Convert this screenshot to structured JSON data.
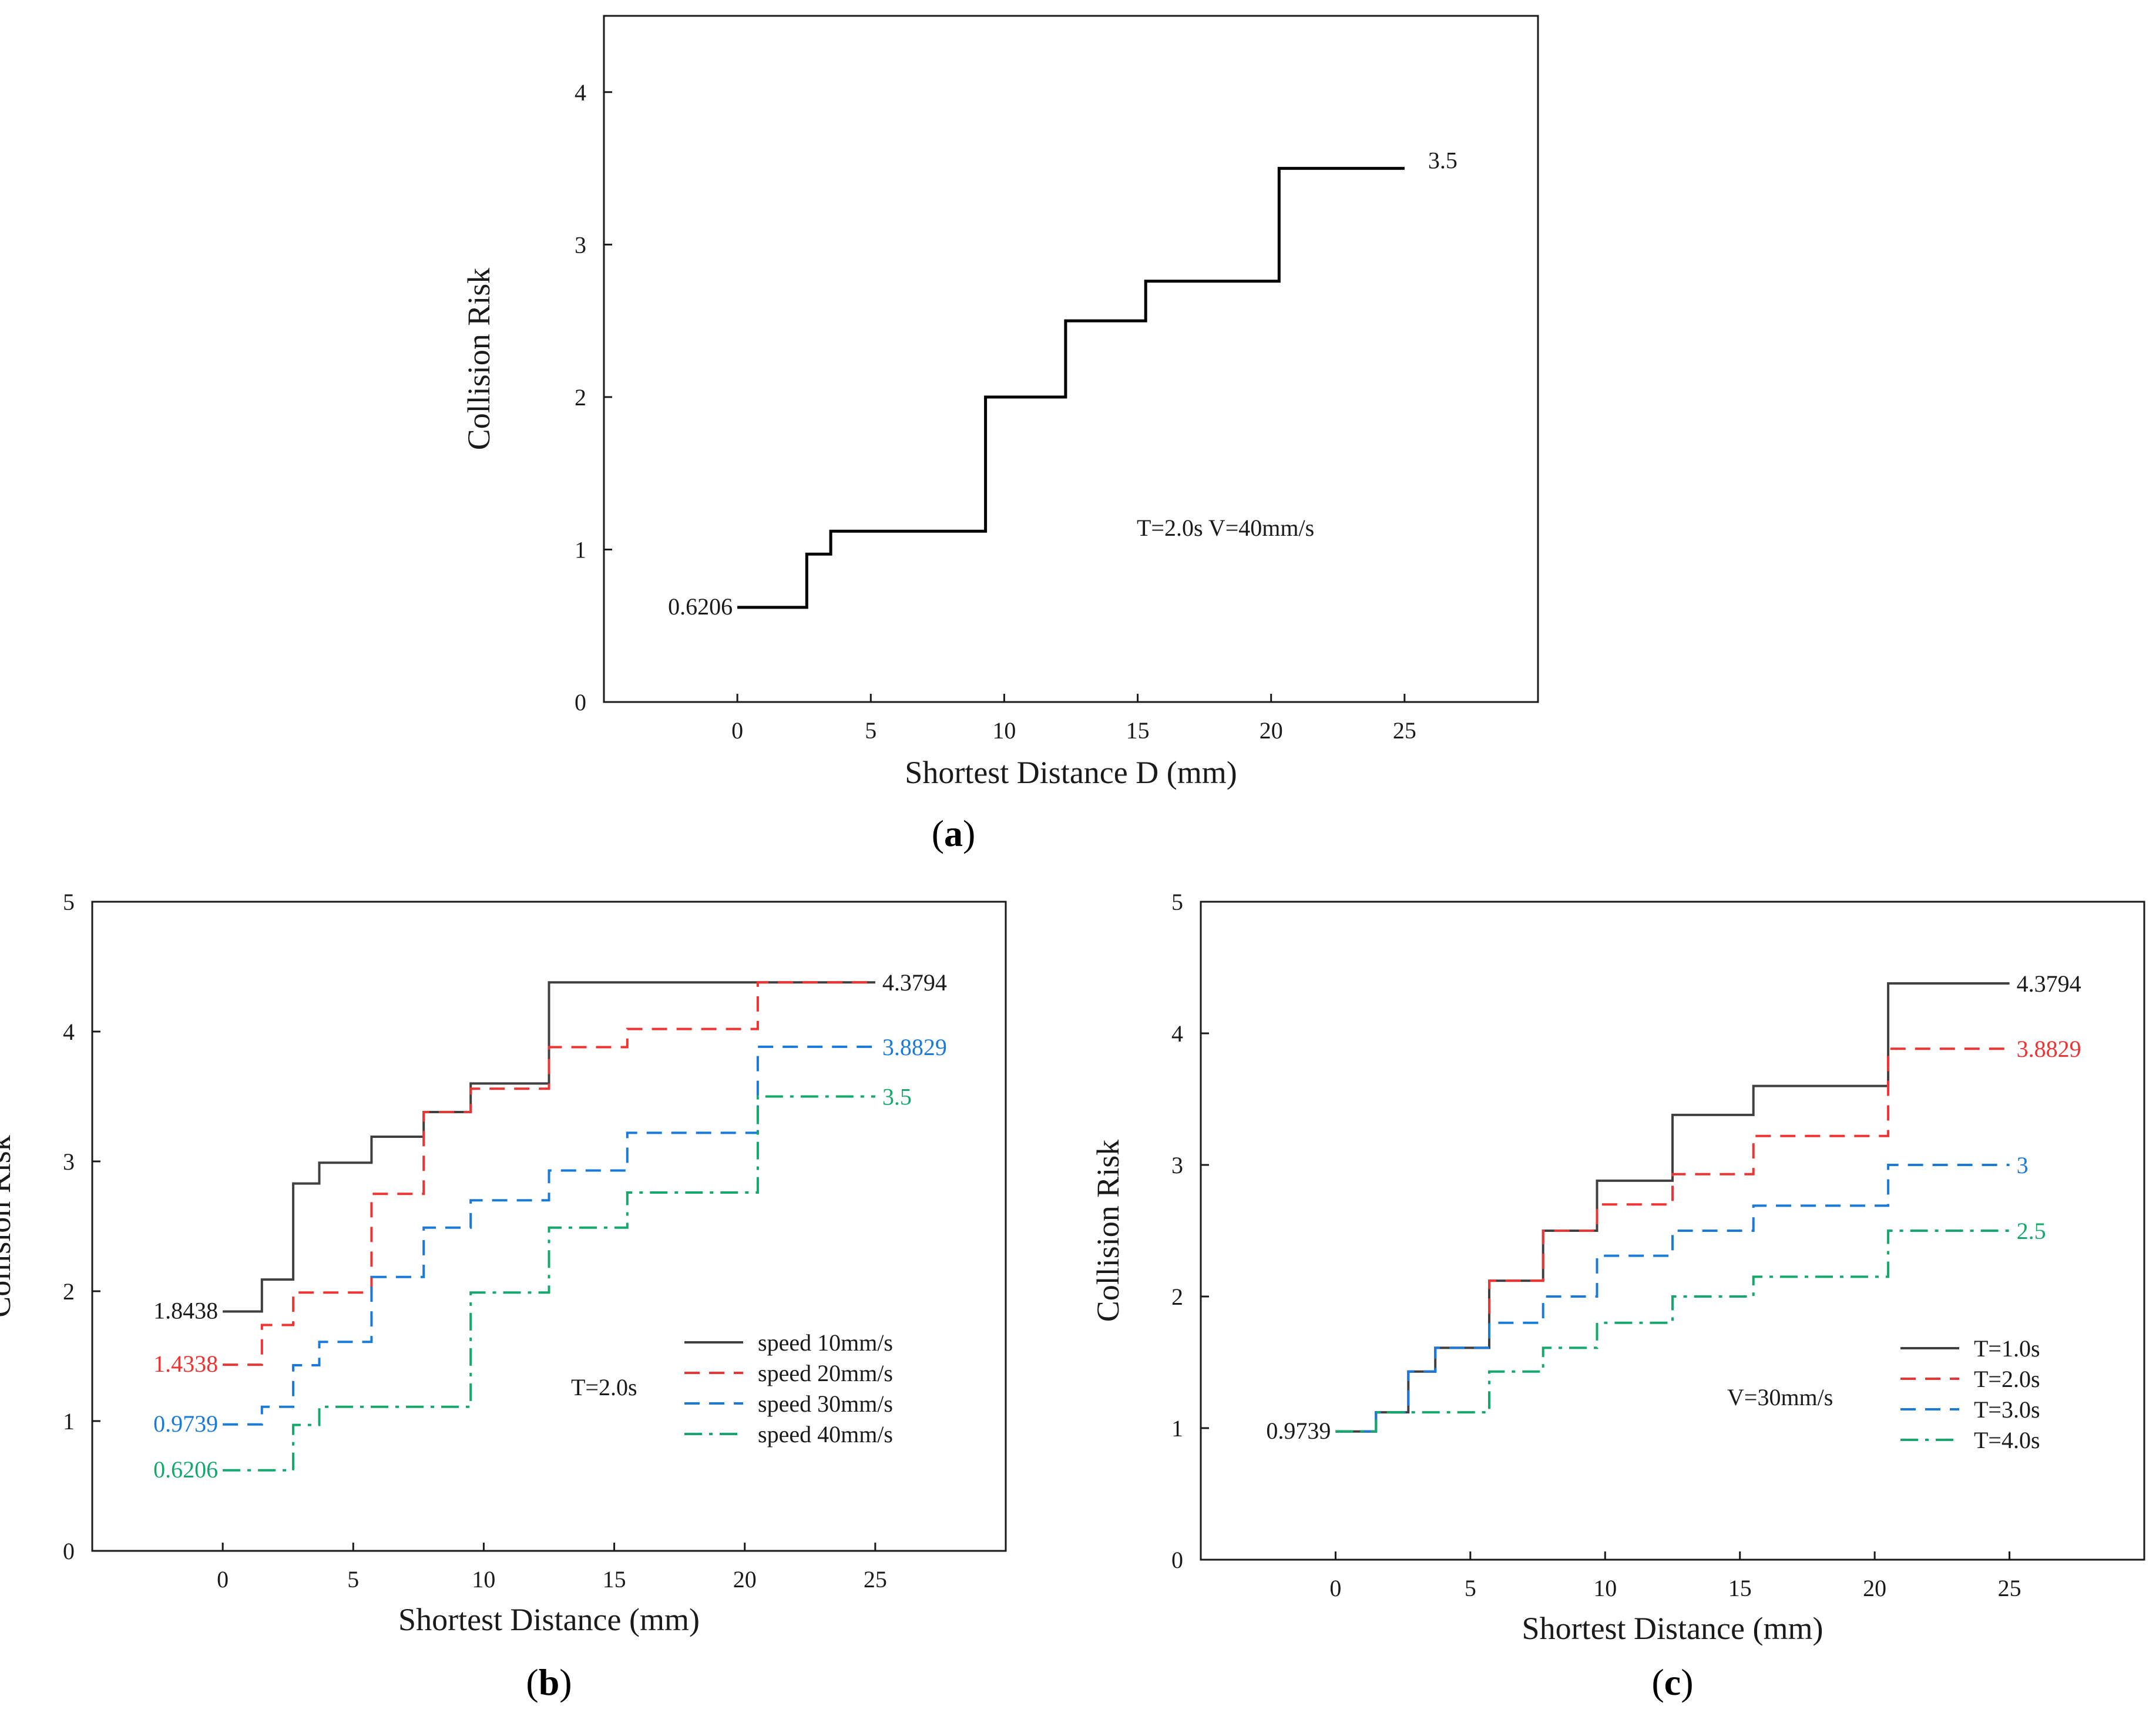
{
  "chart_data": [
    {
      "panel": "(a)",
      "panel_letter": "a",
      "type": "line",
      "step": true,
      "xlabel": "Shortest Distance D (mm)",
      "ylabel": "Collision Risk",
      "xlim": [
        -5,
        30
      ],
      "ylim": [
        0,
        4.5
      ],
      "xticks": [
        0,
        5,
        10,
        15,
        20,
        25
      ],
      "yticks": [
        0,
        1,
        2,
        3,
        4
      ],
      "annotation": "T=2.0s V=40mm/s",
      "series": [
        {
          "name": "T=2.0s V=40mm/s",
          "color": "#000000",
          "dash": "solid",
          "start_label": "0.6206",
          "end_label": "3.5",
          "label_color": "#1a1a1a",
          "points": [
            [
              0,
              0.6206
            ],
            [
              2.6,
              0.6206
            ],
            [
              2.6,
              0.97
            ],
            [
              3.5,
              0.97
            ],
            [
              3.5,
              1.12
            ],
            [
              9.3,
              1.12
            ],
            [
              9.3,
              2.0
            ],
            [
              12.3,
              2.0
            ],
            [
              12.3,
              2.5
            ],
            [
              15.3,
              2.5
            ],
            [
              15.3,
              2.76
            ],
            [
              20.3,
              2.76
            ],
            [
              20.3,
              3.5
            ],
            [
              25,
              3.5
            ]
          ]
        }
      ]
    },
    {
      "panel": "(b)",
      "panel_letter": "b",
      "type": "line",
      "step": true,
      "xlabel": "Shortest Distance (mm)",
      "ylabel": "Collision Risk",
      "xlim": [
        -5,
        30
      ],
      "ylim": [
        0,
        5
      ],
      "xticks": [
        0,
        5,
        10,
        15,
        20,
        25
      ],
      "yticks": [
        0,
        1,
        2,
        3,
        4,
        5
      ],
      "annotation": "T=2.0s",
      "legend_position": "lower-right",
      "series": [
        {
          "name": "speed 10mm/s",
          "color": "#404040",
          "dash": "solid",
          "start_label": "1.8438",
          "end_label": "4.3794",
          "label_color": "#1a1a1a",
          "points": [
            [
              0,
              1.8438
            ],
            [
              1.5,
              1.8438
            ],
            [
              1.5,
              2.09
            ],
            [
              2.7,
              2.09
            ],
            [
              2.7,
              2.83
            ],
            [
              3.7,
              2.83
            ],
            [
              3.7,
              2.99
            ],
            [
              5.7,
              2.99
            ],
            [
              5.7,
              3.19
            ],
            [
              7.7,
              3.19
            ],
            [
              7.7,
              3.38
            ],
            [
              9.5,
              3.38
            ],
            [
              9.5,
              3.6
            ],
            [
              12.5,
              3.6
            ],
            [
              12.5,
              4.3794
            ],
            [
              25,
              4.3794
            ]
          ]
        },
        {
          "name": "speed 20mm/s",
          "color": "#ee3333",
          "dash": "dashed",
          "start_label": "1.4338",
          "end_label": "",
          "label_color": "#ee3333",
          "points": [
            [
              0,
              1.4338
            ],
            [
              1.5,
              1.4338
            ],
            [
              1.5,
              1.74
            ],
            [
              2.7,
              1.74
            ],
            [
              2.7,
              1.99
            ],
            [
              5.7,
              1.99
            ],
            [
              5.7,
              2.75
            ],
            [
              7.7,
              2.75
            ],
            [
              7.7,
              3.38
            ],
            [
              9.5,
              3.38
            ],
            [
              9.5,
              3.56
            ],
            [
              12.5,
              3.56
            ],
            [
              12.5,
              3.88
            ],
            [
              15.5,
              3.88
            ],
            [
              15.5,
              4.02
            ],
            [
              20.5,
              4.02
            ],
            [
              20.5,
              4.3794
            ],
            [
              25,
              4.3794
            ]
          ]
        },
        {
          "name": "speed 30mm/s",
          "color": "#1a7ad9",
          "dash": "dashed",
          "start_label": "0.9739",
          "end_label": "3.8829",
          "label_color": "#1a7ad9",
          "points": [
            [
              0,
              0.9739
            ],
            [
              1.5,
              0.9739
            ],
            [
              1.5,
              1.11
            ],
            [
              2.7,
              1.11
            ],
            [
              2.7,
              1.43
            ],
            [
              3.7,
              1.43
            ],
            [
              3.7,
              1.61
            ],
            [
              5.7,
              1.61
            ],
            [
              5.7,
              2.11
            ],
            [
              7.7,
              2.11
            ],
            [
              7.7,
              2.49
            ],
            [
              9.5,
              2.49
            ],
            [
              9.5,
              2.7
            ],
            [
              12.5,
              2.7
            ],
            [
              12.5,
              2.93
            ],
            [
              15.5,
              2.93
            ],
            [
              15.5,
              3.22
            ],
            [
              20.5,
              3.22
            ],
            [
              20.5,
              3.8829
            ],
            [
              25,
              3.8829
            ]
          ]
        },
        {
          "name": "speed 40mm/s",
          "color": "#14a86c",
          "dash": "dashdot",
          "start_label": "0.6206",
          "end_label": "3.5",
          "label_color": "#14a86c",
          "points": [
            [
              0,
              0.6206
            ],
            [
              2.7,
              0.6206
            ],
            [
              2.7,
              0.97
            ],
            [
              3.7,
              0.97
            ],
            [
              3.7,
              1.11
            ],
            [
              9.5,
              1.11
            ],
            [
              9.5,
              1.99
            ],
            [
              12.5,
              1.99
            ],
            [
              12.5,
              2.49
            ],
            [
              15.5,
              2.49
            ],
            [
              15.5,
              2.76
            ],
            [
              20.5,
              2.76
            ],
            [
              20.5,
              3.5
            ],
            [
              25,
              3.5
            ]
          ]
        }
      ]
    },
    {
      "panel": "(c)",
      "panel_letter": "c",
      "type": "line",
      "step": true,
      "xlabel": "Shortest Distance (mm)",
      "ylabel": "Collision Risk",
      "xlim": [
        -5,
        30
      ],
      "ylim": [
        0,
        5
      ],
      "xticks": [
        0,
        5,
        10,
        15,
        20,
        25
      ],
      "yticks": [
        0,
        1,
        2,
        3,
        4,
        5
      ],
      "annotation": "V=30mm/s",
      "legend_position": "lower-right",
      "series": [
        {
          "name": "T=1.0s",
          "color": "#404040",
          "dash": "solid",
          "start_label": "0.9739",
          "end_label": "4.3794",
          "label_color": "#1a1a1a",
          "points": [
            [
              0,
              0.9739
            ],
            [
              1.5,
              0.9739
            ],
            [
              1.5,
              1.12
            ],
            [
              2.7,
              1.12
            ],
            [
              2.7,
              1.43
            ],
            [
              3.7,
              1.43
            ],
            [
              3.7,
              1.61
            ],
            [
              5.7,
              1.61
            ],
            [
              5.7,
              2.12
            ],
            [
              7.7,
              2.12
            ],
            [
              7.7,
              2.5
            ],
            [
              9.7,
              2.5
            ],
            [
              9.7,
              2.88
            ],
            [
              12.5,
              2.88
            ],
            [
              12.5,
              3.38
            ],
            [
              15.5,
              3.38
            ],
            [
              15.5,
              3.6
            ],
            [
              20.5,
              3.6
            ],
            [
              20.5,
              4.3794
            ],
            [
              25,
              4.3794
            ]
          ]
        },
        {
          "name": "T=2.0s",
          "color": "#ee3333",
          "dash": "dashed",
          "start_label": "",
          "end_label": "3.8829",
          "label_color": "#ee3333",
          "points": [
            [
              0,
              0.9739
            ],
            [
              1.5,
              0.9739
            ],
            [
              1.5,
              1.12
            ],
            [
              2.7,
              1.12
            ],
            [
              2.7,
              1.43
            ],
            [
              3.7,
              1.43
            ],
            [
              3.7,
              1.61
            ],
            [
              5.7,
              1.61
            ],
            [
              5.7,
              2.12
            ],
            [
              7.7,
              2.12
            ],
            [
              7.7,
              2.5
            ],
            [
              9.7,
              2.5
            ],
            [
              9.7,
              2.7
            ],
            [
              12.5,
              2.7
            ],
            [
              12.5,
              2.93
            ],
            [
              15.5,
              2.93
            ],
            [
              15.5,
              3.22
            ],
            [
              20.5,
              3.22
            ],
            [
              20.5,
              3.8829
            ],
            [
              25,
              3.8829
            ]
          ]
        },
        {
          "name": "T=3.0s",
          "color": "#1a7ad9",
          "dash": "dashed",
          "start_label": "",
          "end_label": "3",
          "label_color": "#1a7ad9",
          "points": [
            [
              0,
              0.9739
            ],
            [
              1.5,
              0.9739
            ],
            [
              1.5,
              1.12
            ],
            [
              2.7,
              1.12
            ],
            [
              2.7,
              1.43
            ],
            [
              3.7,
              1.43
            ],
            [
              3.7,
              1.61
            ],
            [
              5.7,
              1.61
            ],
            [
              5.7,
              1.8
            ],
            [
              7.7,
              1.8
            ],
            [
              7.7,
              2.0
            ],
            [
              9.7,
              2.0
            ],
            [
              9.7,
              2.31
            ],
            [
              12.5,
              2.31
            ],
            [
              12.5,
              2.5
            ],
            [
              15.5,
              2.5
            ],
            [
              15.5,
              2.69
            ],
            [
              20.5,
              2.69
            ],
            [
              20.5,
              3.0
            ],
            [
              25,
              3.0
            ]
          ]
        },
        {
          "name": "T=4.0s",
          "color": "#14a86c",
          "dash": "dashdot",
          "start_label": "",
          "end_label": "2.5",
          "label_color": "#14a86c",
          "points": [
            [
              0,
              0.9739
            ],
            [
              1.5,
              0.9739
            ],
            [
              1.5,
              1.12
            ],
            [
              5.7,
              1.12
            ],
            [
              5.7,
              1.43
            ],
            [
              7.7,
              1.43
            ],
            [
              7.7,
              1.61
            ],
            [
              9.7,
              1.61
            ],
            [
              9.7,
              1.8
            ],
            [
              12.5,
              1.8
            ],
            [
              12.5,
              2.0
            ],
            [
              15.5,
              2.0
            ],
            [
              15.5,
              2.15
            ],
            [
              20.5,
              2.15
            ],
            [
              20.5,
              2.5
            ],
            [
              25,
              2.5
            ]
          ]
        }
      ]
    }
  ]
}
